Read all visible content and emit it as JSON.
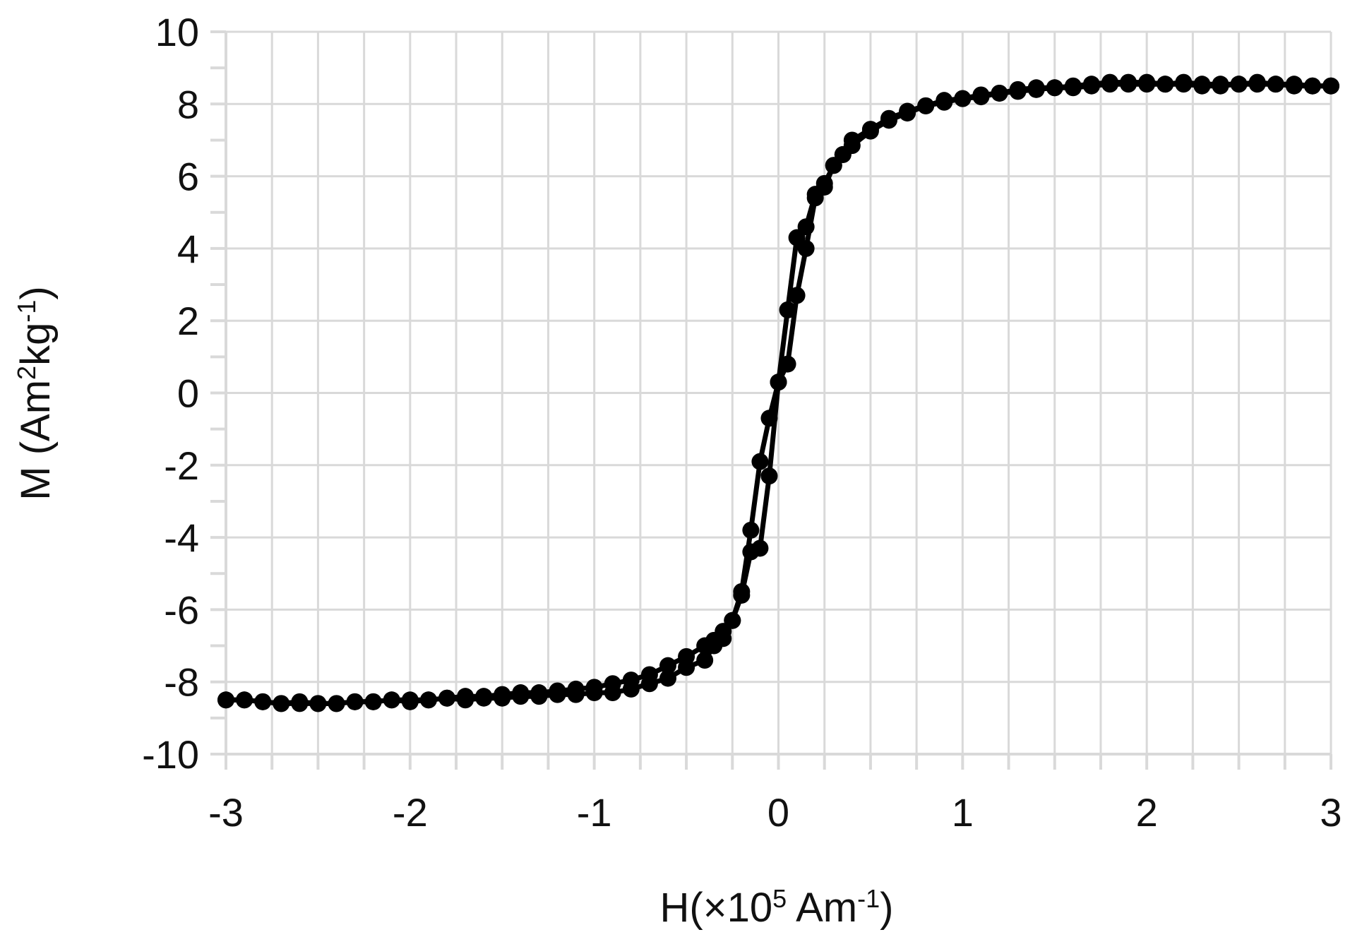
{
  "chart_data": {
    "type": "scatter",
    "title": "",
    "xlabel": {
      "pre": "H(×10",
      "sup1": "5",
      "mid": " Am",
      "sup2": "-1",
      "post": ")"
    },
    "ylabel": {
      "pre": "M (Am",
      "sup1": "2",
      "mid": "kg",
      "sup2": "-1",
      "post": ")"
    },
    "xlim": [
      -3,
      3
    ],
    "ylim": [
      -10,
      10
    ],
    "x_ticks": [
      -3,
      -2,
      -1,
      0,
      1,
      2,
      3
    ],
    "x_tick_labels": [
      "-3",
      "-2",
      "-1",
      "0",
      "1",
      "2",
      "3"
    ],
    "y_ticks": [
      -10,
      -8,
      -6,
      -4,
      -2,
      0,
      2,
      4,
      6,
      8,
      10
    ],
    "y_tick_labels": [
      "-10",
      "-8",
      "-6",
      "-4",
      "-2",
      "0",
      "2",
      "4",
      "6",
      "8",
      "10"
    ],
    "grid": true,
    "marker_color": "#000000",
    "line_color": "#000000",
    "grid_color": "#d9d9d9",
    "series": [
      {
        "x": [
          3.0,
          2.9,
          2.8,
          2.7,
          2.6,
          2.5,
          2.4,
          2.3,
          2.2,
          2.1,
          2.0,
          1.9,
          1.8,
          1.7,
          1.6,
          1.5,
          1.4,
          1.3,
          1.2,
          1.1,
          1.0,
          0.9,
          0.8,
          0.7,
          0.6,
          0.5,
          0.4,
          0.35,
          0.3,
          0.25,
          0.2,
          0.15,
          0.1,
          0.05,
          0.0,
          -0.05,
          -0.1,
          -0.15,
          -0.2,
          -0.25,
          -0.3,
          -0.35,
          -0.4,
          -0.5,
          -0.6,
          -0.7,
          -0.8,
          -0.9,
          -1.0,
          -1.1,
          -1.2,
          -1.3,
          -1.4,
          -1.5,
          -1.6,
          -1.7,
          -1.8,
          -1.9,
          -2.0,
          -2.1,
          -2.2,
          -2.3,
          -2.4,
          -2.5,
          -2.6,
          -2.7,
          -2.8,
          -2.9,
          -3.0
        ],
        "y": [
          8.5,
          8.5,
          8.55,
          8.55,
          8.6,
          8.55,
          8.55,
          8.55,
          8.6,
          8.55,
          8.6,
          8.6,
          8.6,
          8.55,
          8.5,
          8.45,
          8.45,
          8.4,
          8.3,
          8.25,
          8.15,
          8.05,
          7.95,
          7.75,
          7.55,
          7.25,
          6.85,
          6.6,
          6.3,
          5.8,
          5.5,
          4.6,
          4.3,
          2.3,
          0.3,
          -0.7,
          -1.9,
          -3.8,
          -5.5,
          -6.3,
          -6.8,
          -7.0,
          -7.4,
          -7.6,
          -7.9,
          -8.05,
          -8.2,
          -8.3,
          -8.3,
          -8.35,
          -8.35,
          -8.4,
          -8.4,
          -8.45,
          -8.45,
          -8.5,
          -8.45,
          -8.5,
          -8.55,
          -8.5,
          -8.55,
          -8.55,
          -8.6,
          -8.6,
          -8.55,
          -8.6,
          -8.55,
          -8.5,
          -8.5
        ]
      },
      {
        "x": [
          -3.0,
          -2.9,
          -2.8,
          -2.7,
          -2.6,
          -2.5,
          -2.4,
          -2.3,
          -2.2,
          -2.1,
          -2.0,
          -1.9,
          -1.8,
          -1.7,
          -1.6,
          -1.5,
          -1.4,
          -1.3,
          -1.2,
          -1.1,
          -1.0,
          -0.9,
          -0.8,
          -0.7,
          -0.6,
          -0.5,
          -0.4,
          -0.35,
          -0.3,
          -0.25,
          -0.2,
          -0.15,
          -0.1,
          -0.05,
          0.0,
          0.05,
          0.1,
          0.15,
          0.2,
          0.25,
          0.3,
          0.35,
          0.4,
          0.5,
          0.6,
          0.7,
          0.8,
          0.9,
          1.0,
          1.1,
          1.2,
          1.3,
          1.4,
          1.5,
          1.6,
          1.7,
          1.8,
          1.9,
          2.0,
          2.1,
          2.2,
          2.3,
          2.4,
          2.5,
          2.6,
          2.7,
          2.8,
          2.9,
          3.0
        ],
        "y": [
          -8.5,
          -8.5,
          -8.55,
          -8.6,
          -8.6,
          -8.6,
          -8.6,
          -8.55,
          -8.55,
          -8.5,
          -8.5,
          -8.5,
          -8.45,
          -8.4,
          -8.4,
          -8.35,
          -8.3,
          -8.3,
          -8.25,
          -8.2,
          -8.15,
          -8.05,
          -7.95,
          -7.8,
          -7.55,
          -7.3,
          -7.0,
          -6.85,
          -6.6,
          -6.3,
          -5.6,
          -4.4,
          -4.3,
          -2.3,
          0.3,
          0.8,
          2.7,
          4.0,
          5.4,
          5.7,
          6.3,
          6.6,
          7.0,
          7.3,
          7.6,
          7.8,
          7.95,
          8.1,
          8.15,
          8.2,
          8.3,
          8.35,
          8.4,
          8.45,
          8.45,
          8.5,
          8.55,
          8.55,
          8.55,
          8.55,
          8.55,
          8.5,
          8.5,
          8.55,
          8.55,
          8.55,
          8.5,
          8.5,
          8.5
        ]
      }
    ]
  }
}
